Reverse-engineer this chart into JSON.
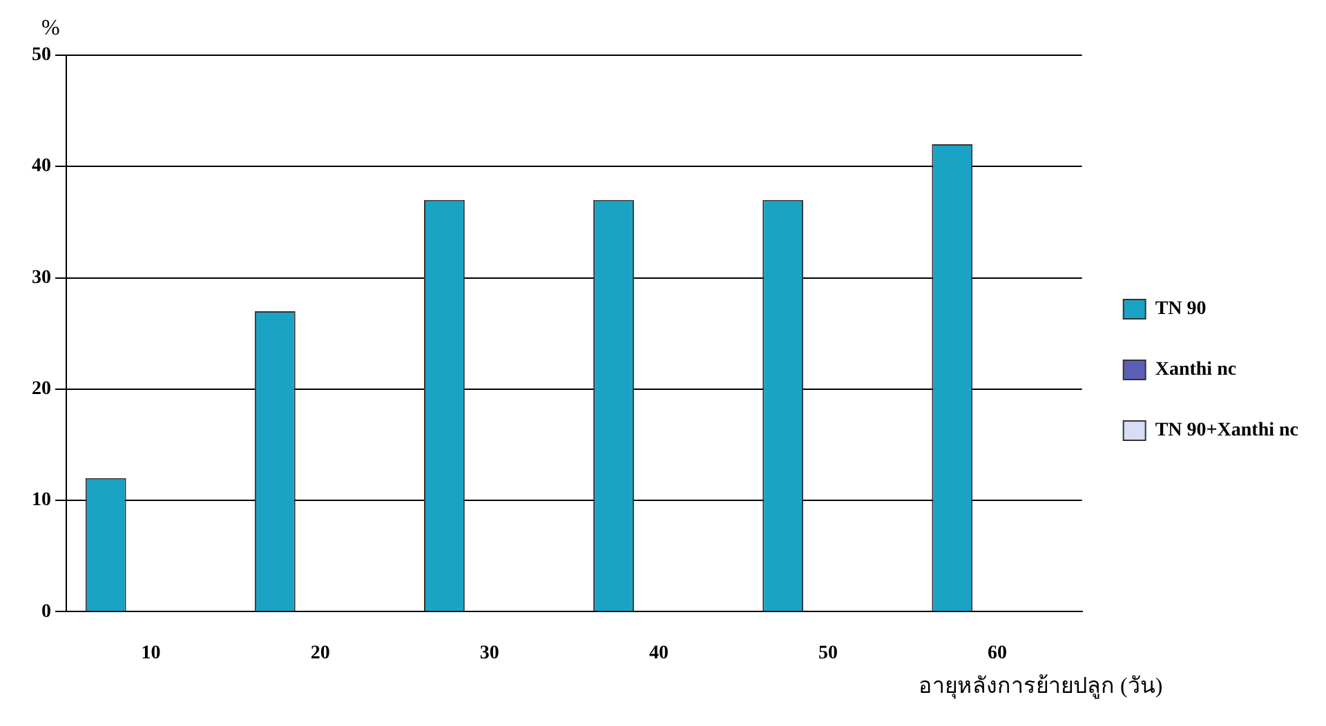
{
  "chart_data": {
    "type": "bar",
    "ylabel": "%",
    "xlabel": "อายุหลังการย้ายปลูก (วัน)",
    "categories": [
      "10",
      "20",
      "30",
      "40",
      "50",
      "60"
    ],
    "series": [
      {
        "name": "TN 90",
        "color": "#1ba3c6",
        "values": [
          12,
          27,
          37,
          37,
          37,
          42
        ]
      },
      {
        "name": "Xanthi nc",
        "color": "#5a5fb5",
        "values": [
          0,
          0,
          0,
          0,
          0,
          0
        ]
      },
      {
        "name": "TN 90+Xanthi nc",
        "color": "#d8dcf5",
        "values": [
          0,
          0,
          0,
          0,
          0,
          0
        ]
      }
    ],
    "ylim": [
      0,
      50
    ],
    "yticks": [
      0,
      10,
      20,
      30,
      40,
      50
    ],
    "grid": "y",
    "legend": "right"
  }
}
